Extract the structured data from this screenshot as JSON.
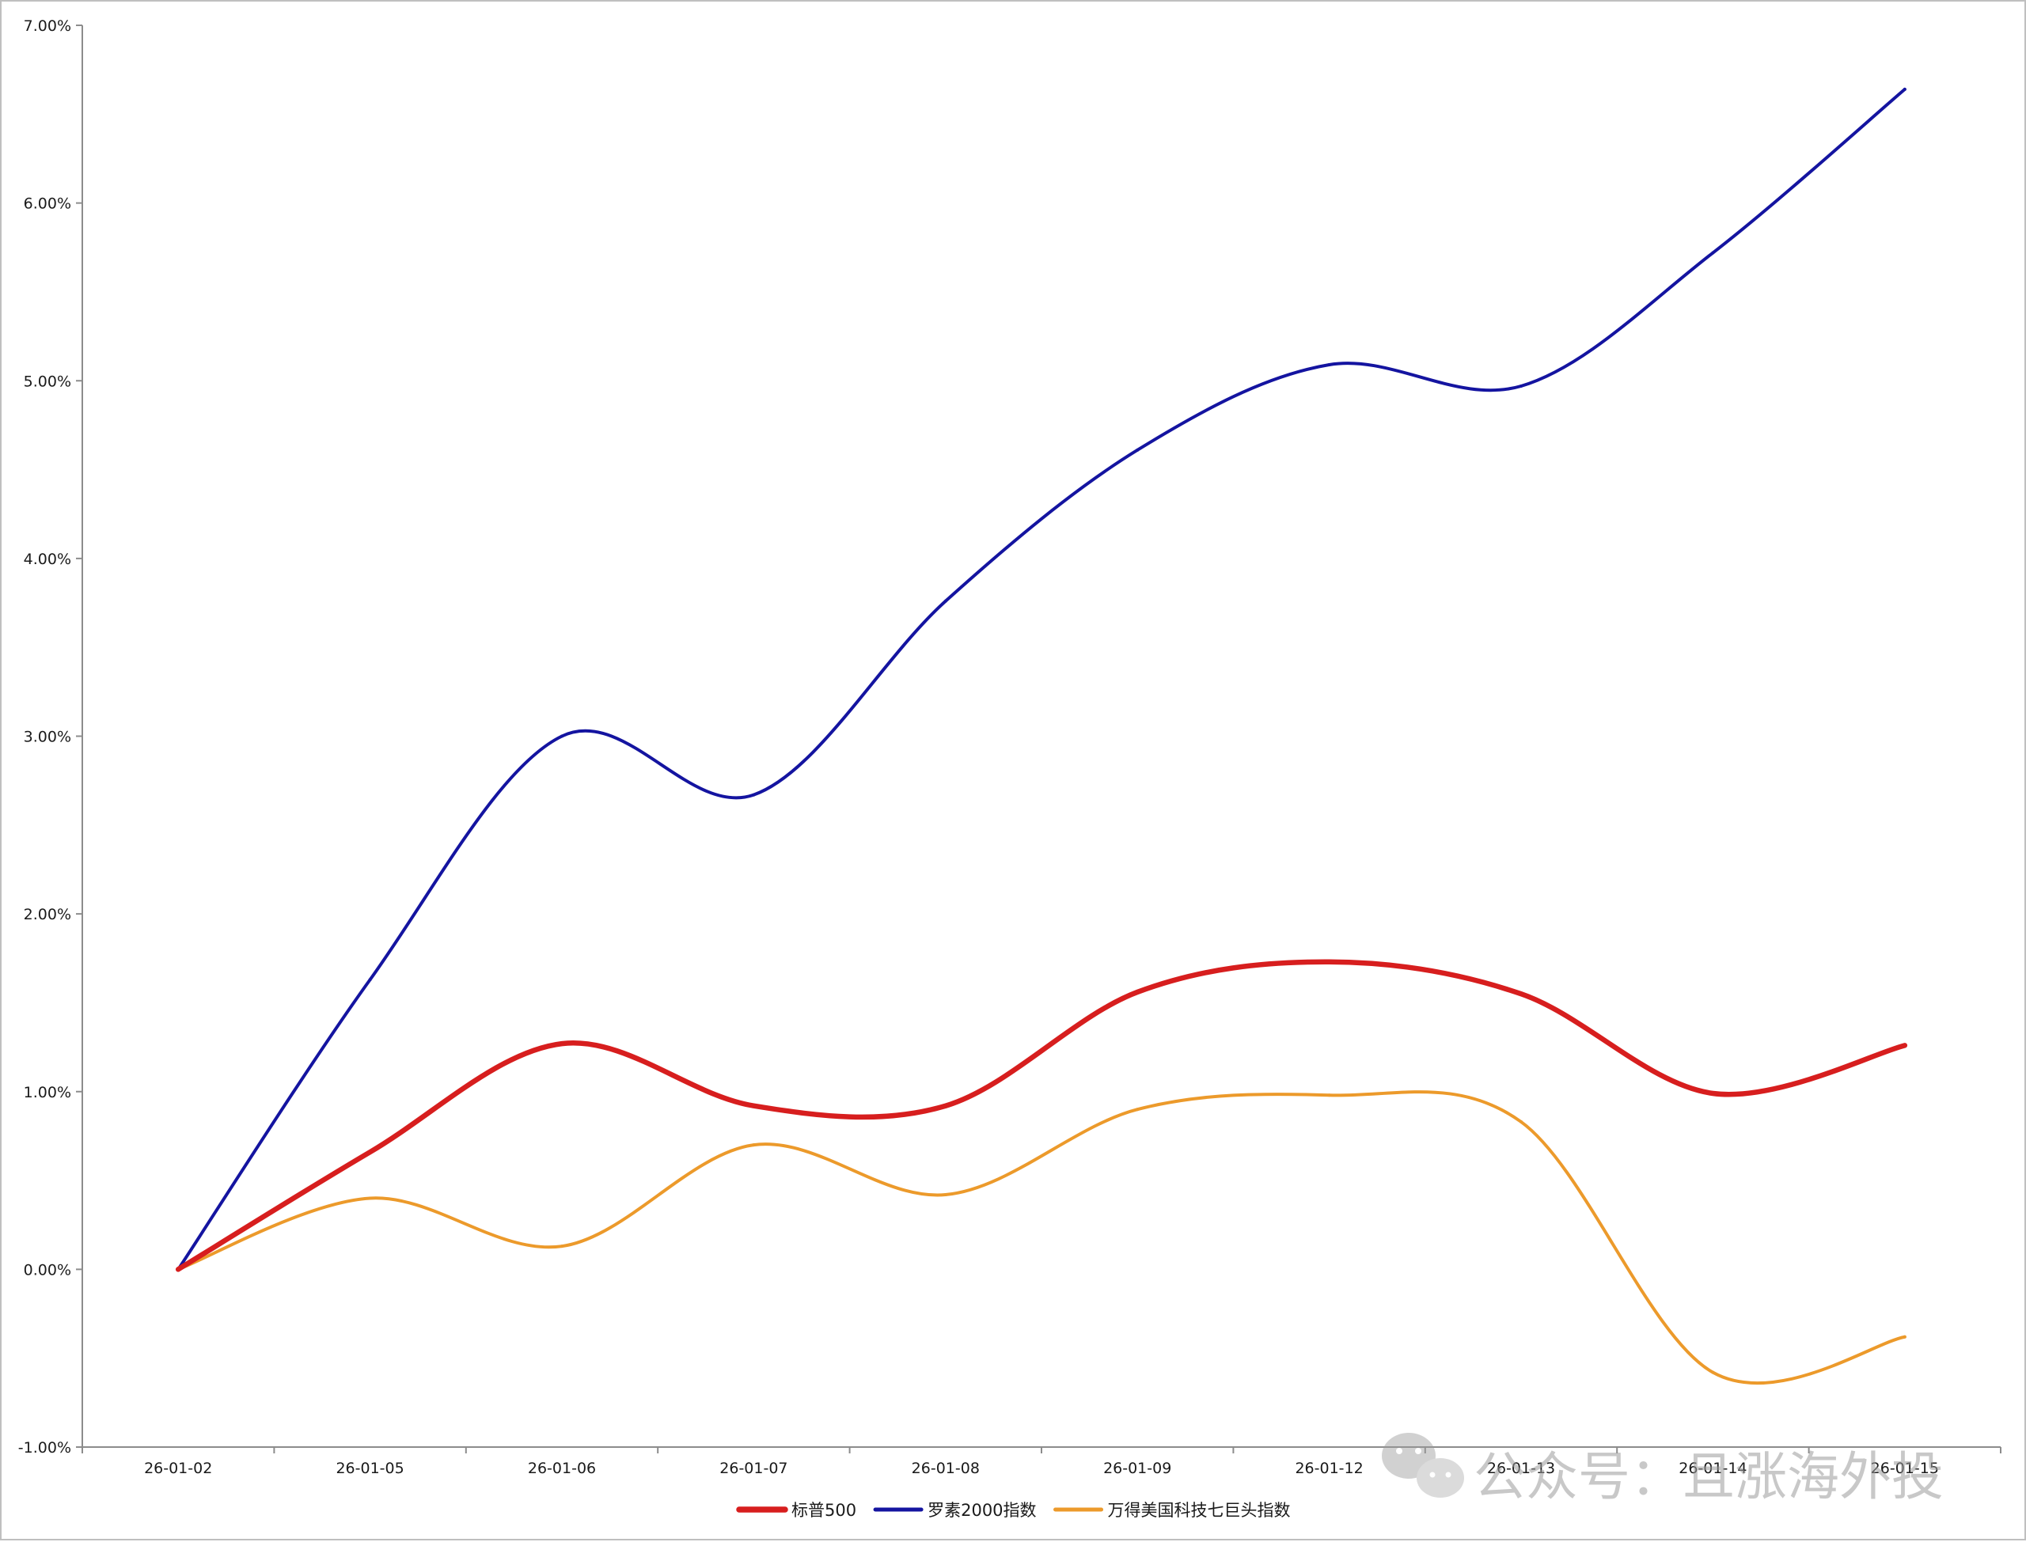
{
  "chart_data": {
    "type": "line",
    "title": "",
    "xlabel": "",
    "ylabel": "",
    "categories": [
      "26-01-02",
      "26-01-05",
      "26-01-06",
      "26-01-07",
      "26-01-08",
      "26-01-09",
      "26-01-12",
      "26-01-13",
      "26-01-14",
      "26-01-15"
    ],
    "ylim": [
      -0.01,
      0.07
    ],
    "yticks": [
      -0.01,
      0,
      0.01,
      0.02,
      0.03,
      0.04,
      0.05,
      0.06,
      0.07
    ],
    "ytick_labels": [
      "-1.00%",
      "0.00%",
      "1.00%",
      "2.00%",
      "3.00%",
      "4.00%",
      "5.00%",
      "6.00%",
      "7.00%"
    ],
    "grid": false,
    "legend_position": "bottom-center",
    "smooth": true,
    "series": [
      {
        "name": "标普500",
        "color": "#d71e1e",
        "values": [
          0.0,
          0.0066,
          0.0127,
          0.0092,
          0.0092,
          0.0156,
          0.0173,
          0.0155,
          0.0099,
          0.0126
        ]
      },
      {
        "name": "罗素2000指数",
        "color": "#1414a0",
        "values": [
          0.0,
          0.0163,
          0.03,
          0.0267,
          0.0376,
          0.0461,
          0.0509,
          0.0497,
          0.0572,
          0.0664
        ]
      },
      {
        "name": "万得美国科技七巨头指数",
        "color": "#ec9a2b",
        "values": [
          0.0,
          0.004,
          0.0013,
          0.007,
          0.0042,
          0.009,
          0.0098,
          0.0083,
          -0.0058,
          -0.0038
        ]
      }
    ]
  },
  "watermark": {
    "text": "公众号：且涨海外投",
    "icon": "wechat-icon"
  }
}
